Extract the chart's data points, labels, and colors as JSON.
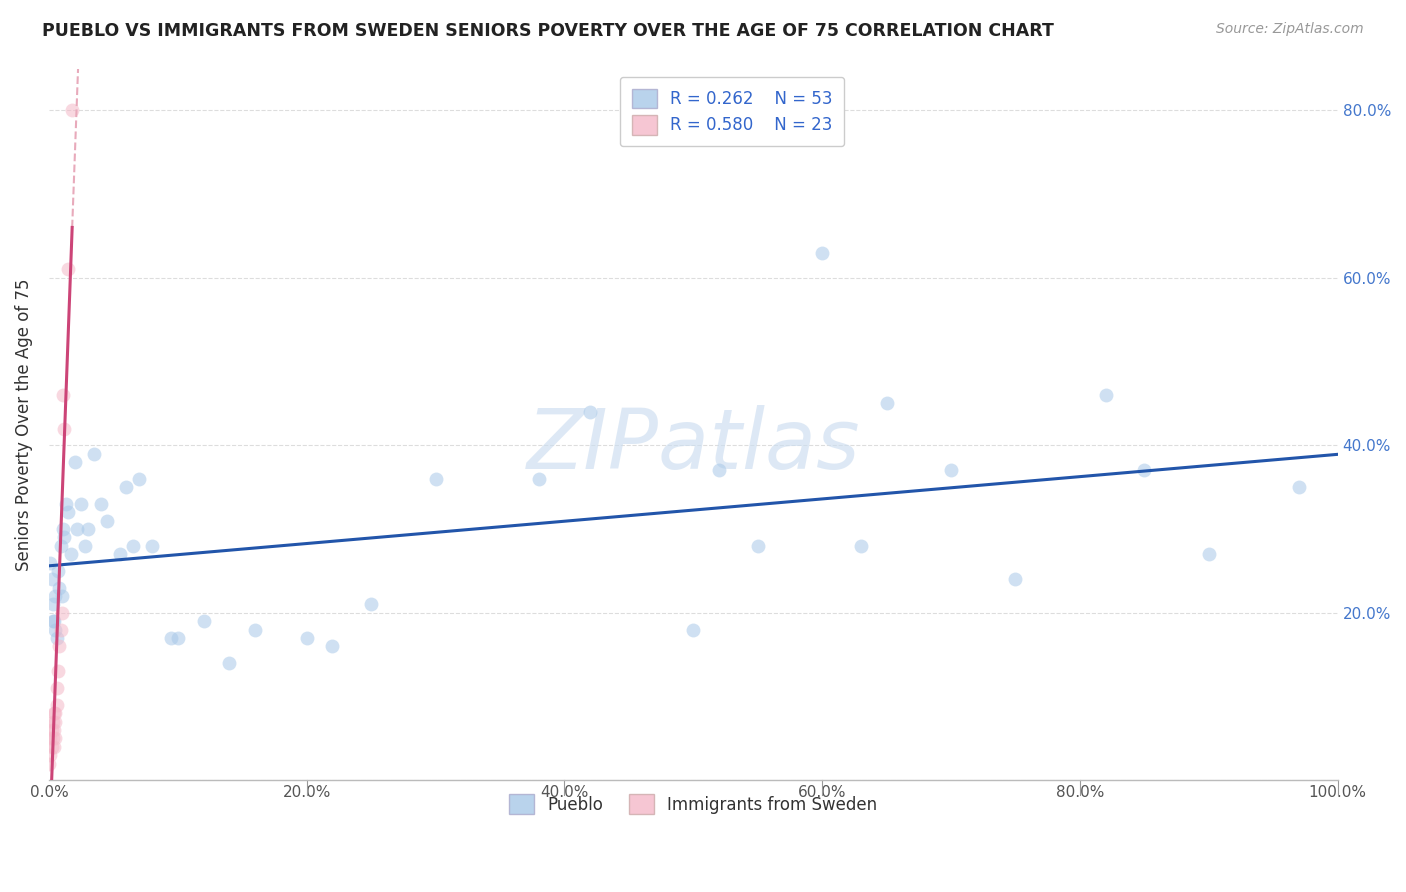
{
  "title": "PUEBLO VS IMMIGRANTS FROM SWEDEN SENIORS POVERTY OVER THE AGE OF 75 CORRELATION CHART",
  "source": "Source: ZipAtlas.com",
  "ylabel": "Seniors Poverty Over the Age of 75",
  "legend_bottom": [
    "Pueblo",
    "Immigrants from Sweden"
  ],
  "R_blue": 0.262,
  "N_blue": 53,
  "R_pink": 0.58,
  "N_pink": 23,
  "blue_color": "#a8c8e8",
  "pink_color": "#f4b8c8",
  "trend_blue": "#2255aa",
  "trend_pink": "#cc4477",
  "trend_pink_dash": "#e8aabb",
  "background_color": "#ffffff",
  "grid_color": "#dddddd",
  "marker_size": 100,
  "marker_alpha": 0.55,
  "xlim": [
    0.0,
    1.0
  ],
  "ylim": [
    0.0,
    0.85
  ],
  "xticks": [
    0.0,
    0.2,
    0.4,
    0.6,
    0.8,
    1.0
  ],
  "yticks": [
    0.0,
    0.2,
    0.4,
    0.6,
    0.8
  ],
  "xticklabels": [
    "0.0%",
    "20.0%",
    "40.0%",
    "60.0%",
    "80.0%",
    "100.0%"
  ],
  "pueblo_x": [
    0.001,
    0.002,
    0.003,
    0.003,
    0.004,
    0.005,
    0.005,
    0.006,
    0.007,
    0.008,
    0.009,
    0.01,
    0.011,
    0.012,
    0.013,
    0.015,
    0.017,
    0.02,
    0.022,
    0.025,
    0.028,
    0.03,
    0.035,
    0.04,
    0.045,
    0.055,
    0.06,
    0.065,
    0.07,
    0.08,
    0.095,
    0.1,
    0.12,
    0.14,
    0.16,
    0.2,
    0.22,
    0.25,
    0.3,
    0.38,
    0.42,
    0.5,
    0.52,
    0.55,
    0.6,
    0.63,
    0.65,
    0.7,
    0.75,
    0.82,
    0.85,
    0.9,
    0.97
  ],
  "pueblo_y": [
    0.26,
    0.24,
    0.21,
    0.19,
    0.19,
    0.18,
    0.22,
    0.17,
    0.25,
    0.23,
    0.28,
    0.22,
    0.3,
    0.29,
    0.33,
    0.32,
    0.27,
    0.38,
    0.3,
    0.33,
    0.28,
    0.3,
    0.39,
    0.33,
    0.31,
    0.27,
    0.35,
    0.28,
    0.36,
    0.28,
    0.17,
    0.17,
    0.19,
    0.14,
    0.18,
    0.17,
    0.16,
    0.21,
    0.36,
    0.36,
    0.44,
    0.18,
    0.37,
    0.28,
    0.63,
    0.28,
    0.45,
    0.37,
    0.24,
    0.46,
    0.37,
    0.27,
    0.35
  ],
  "sweden_x": [
    0.0,
    0.001,
    0.001,
    0.002,
    0.002,
    0.003,
    0.003,
    0.004,
    0.004,
    0.004,
    0.005,
    0.005,
    0.005,
    0.006,
    0.006,
    0.007,
    0.008,
    0.009,
    0.01,
    0.011,
    0.012,
    0.015,
    0.018
  ],
  "sweden_y": [
    0.02,
    0.03,
    0.05,
    0.04,
    0.06,
    0.05,
    0.07,
    0.04,
    0.06,
    0.08,
    0.05,
    0.07,
    0.08,
    0.09,
    0.11,
    0.13,
    0.16,
    0.18,
    0.2,
    0.46,
    0.42,
    0.61,
    0.8
  ]
}
